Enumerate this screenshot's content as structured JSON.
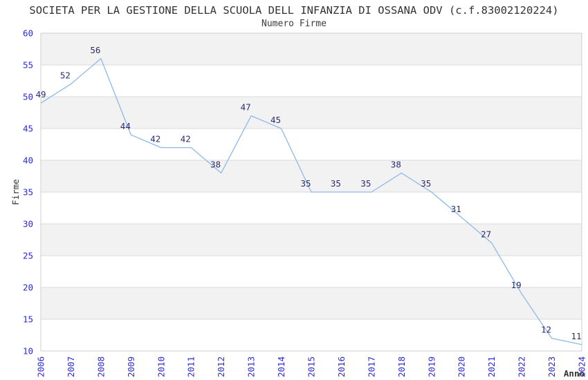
{
  "chart_data": {
    "type": "line",
    "title": "SOCIETA PER LA GESTIONE DELLA SCUOLA DELL INFANZIA DI OSSANA ODV (c.f.83002120224)",
    "subtitle": "Numero Firme",
    "xlabel": "Anno",
    "ylabel": "Firme",
    "categories": [
      "2006",
      "2007",
      "2008",
      "2009",
      "2010",
      "2011",
      "2012",
      "2013",
      "2014",
      "2015",
      "2016",
      "2017",
      "2018",
      "2019",
      "2020",
      "2021",
      "2022",
      "2023",
      "2024"
    ],
    "series": [
      {
        "name": "Numero Firme",
        "values": [
          49,
          52,
          56,
          44,
          42,
          42,
          38,
          47,
          45,
          35,
          35,
          35,
          38,
          35,
          31,
          27,
          19,
          12,
          11
        ]
      }
    ],
    "ylim": [
      10,
      60
    ],
    "ytick_step": 5,
    "grid": "horizontal-bands",
    "legend": "none",
    "point_labels": true,
    "colors": {
      "line": "#8cb9e8",
      "tick_label": "#2a2ad2",
      "point_label": "#2b2b6e",
      "band": "#f2f2f2",
      "band_alt": "#ffffff",
      "grid": "#d9d9d9",
      "border": "#cfcfcf",
      "text": "#333333",
      "background": "#ffffff"
    }
  }
}
